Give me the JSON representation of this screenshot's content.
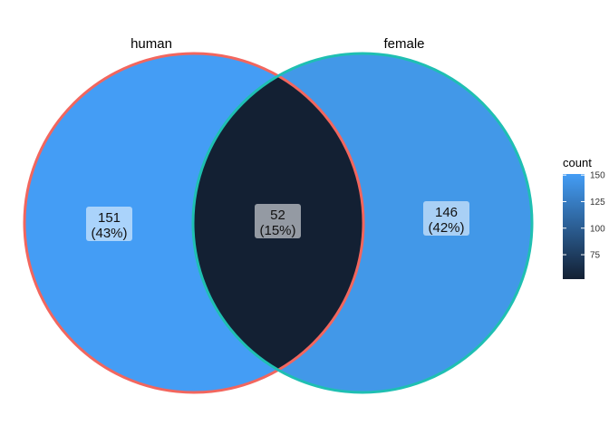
{
  "chart_data": {
    "type": "venn",
    "sets": [
      {
        "name": "human",
        "stroke": "#F2665E"
      },
      {
        "name": "female",
        "stroke": "#1FBFB2"
      }
    ],
    "regions": [
      {
        "sets": [
          "human"
        ],
        "count": "151",
        "percent": "(43%)",
        "fill": "#449DF5"
      },
      {
        "sets": [
          "human",
          "female"
        ],
        "count": "52",
        "percent": "(15%)",
        "fill": "#132033"
      },
      {
        "sets": [
          "female"
        ],
        "count": "146",
        "percent": "(42%)",
        "fill": "#4298E8"
      }
    ],
    "legend": {
      "title": "count",
      "ticks": [
        "150",
        "125",
        "100",
        "75"
      ],
      "tick_values": [
        150,
        125,
        100,
        75
      ],
      "range": [
        52,
        151
      ],
      "color_low": "#132033",
      "color_high": "#449DF5",
      "placement": "right"
    }
  }
}
